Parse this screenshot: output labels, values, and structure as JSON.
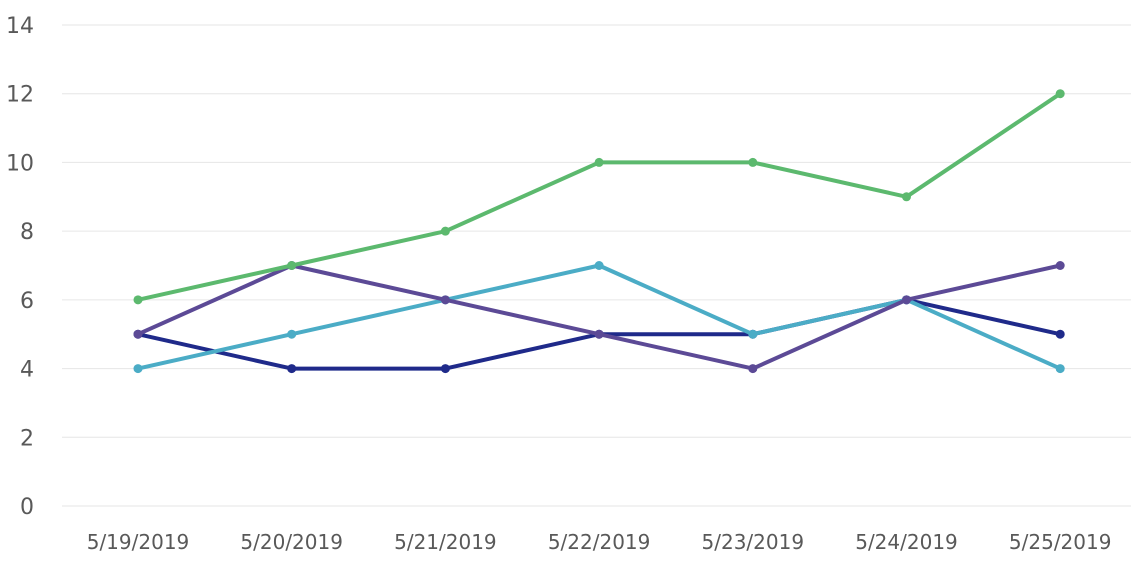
{
  "chart_data": {
    "type": "line",
    "categories": [
      "5/19/2019",
      "5/20/2019",
      "5/21/2019",
      "5/22/2019",
      "5/23/2019",
      "5/24/2019",
      "5/25/2019"
    ],
    "ylim": [
      0,
      14
    ],
    "y_ticks": [
      0,
      2,
      4,
      6,
      8,
      10,
      12,
      14
    ],
    "grid": true,
    "series": [
      {
        "color": "#1f2a8a",
        "values": [
          5,
          4,
          4,
          5,
          5,
          6,
          5
        ]
      },
      {
        "color": "#4bacc6",
        "values": [
          4,
          5,
          6,
          7,
          5,
          6,
          4
        ]
      },
      {
        "color": "#5c4a96",
        "values": [
          5,
          7,
          6,
          5,
          4,
          6,
          7
        ]
      },
      {
        "color": "#5cb96e",
        "values": [
          6,
          7,
          8,
          10,
          10,
          9,
          12
        ]
      }
    ]
  }
}
